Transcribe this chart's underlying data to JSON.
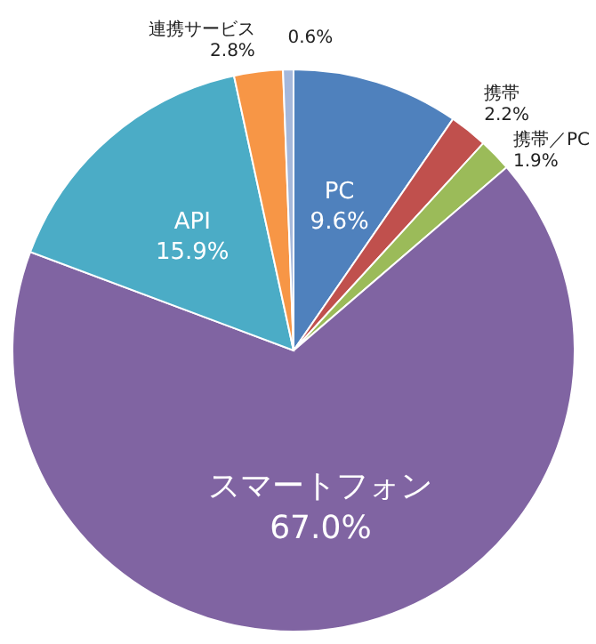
{
  "chart_data": {
    "type": "pie",
    "categories": [
      "PC",
      "携帯",
      "携帯／PC",
      "スマートフォン",
      "API",
      "連携サービス",
      null
    ],
    "values": [
      9.6,
      2.2,
      1.9,
      67.0,
      15.9,
      2.8,
      0.6
    ],
    "value_labels": [
      "9.6%",
      "2.2%",
      "1.9%",
      "67.0%",
      "15.9%",
      "2.8%",
      "0.6%"
    ],
    "colors": [
      "#4f81bd",
      "#c0504d",
      "#9bbb59",
      "#8064a2",
      "#4bacc6",
      "#f79646",
      "#a5b8db"
    ]
  }
}
